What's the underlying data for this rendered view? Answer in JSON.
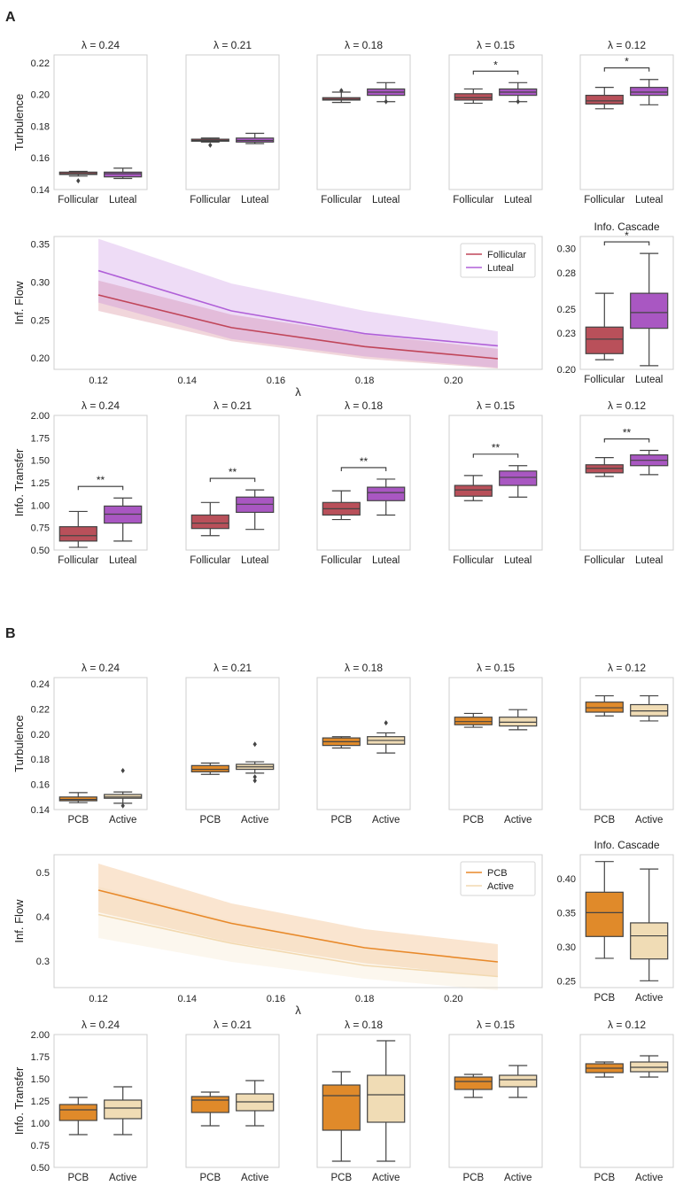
{
  "panels": [
    {
      "label": "A",
      "group1": "Follicular",
      "group2": "Luteal",
      "color1": "#b9505a",
      "color2": "#a957c2",
      "line1": "#c0465a",
      "line2": "#b060d8",
      "legend": [
        "Follicular",
        "Luteal"
      ],
      "series_names": [
        "Follicular",
        "Luteal"
      ]
    },
    {
      "label": "B",
      "group1": "PCB",
      "group2": "Active",
      "color1": "#e08a2a",
      "color2": "#f0dcb5",
      "line1": "#e8892a",
      "line2": "#f2d9b0",
      "legend": [
        "PCB",
        "Active"
      ],
      "series_names": [
        "PCB",
        "Active"
      ]
    }
  ],
  "lambda_titles": [
    "λ = 0.24",
    "λ = 0.21",
    "λ = 0.18",
    "λ = 0.15",
    "λ = 0.12"
  ],
  "labels": {
    "turbulence": "Turbulence",
    "inf_flow": "Inf. Flow",
    "info_transfer": "Info. Transfer",
    "info_cascade": "Info. Cascade",
    "lambda": "λ"
  },
  "chart_data": [
    {
      "type": "box",
      "panel": "A",
      "row": "Turbulence",
      "ylabel": "Turbulence",
      "ylim": [
        0.14,
        0.225
      ],
      "yticks": [
        "0.14",
        "0.16",
        "0.18",
        "0.20",
        "0.22"
      ],
      "subplots": [
        {
          "title": "λ = 0.24",
          "categories": [
            "Follicular",
            "Luteal"
          ],
          "boxes": [
            {
              "low": 0.1485,
              "q1": 0.1495,
              "median": 0.15,
              "q3": 0.151,
              "high": 0.1515,
              "outliers": [
                0.1455
              ]
            },
            {
              "low": 0.147,
              "q1": 0.148,
              "median": 0.15,
              "q3": 0.151,
              "high": 0.1535,
              "outliers": []
            }
          ],
          "sig": ""
        },
        {
          "title": "λ = 0.21",
          "categories": [
            "Follicular",
            "Luteal"
          ],
          "boxes": [
            {
              "low": 0.17,
              "q1": 0.1705,
              "median": 0.171,
              "q3": 0.1718,
              "high": 0.1725,
              "outliers": [
                0.168
              ]
            },
            {
              "low": 0.169,
              "q1": 0.17,
              "median": 0.171,
              "q3": 0.1725,
              "high": 0.1755,
              "outliers": []
            }
          ],
          "sig": ""
        },
        {
          "title": "λ = 0.18",
          "categories": [
            "Follicular",
            "Luteal"
          ],
          "boxes": [
            {
              "low": 0.195,
              "q1": 0.1965,
              "median": 0.197,
              "q3": 0.198,
              "high": 0.2015,
              "outliers": [
                0.2025
              ]
            },
            {
              "low": 0.1955,
              "q1": 0.1995,
              "median": 0.2015,
              "q3": 0.2035,
              "high": 0.2075,
              "outliers": [
                0.1955
              ]
            }
          ],
          "sig": ""
        },
        {
          "title": "λ = 0.15",
          "categories": [
            "Follicular",
            "Luteal"
          ],
          "boxes": [
            {
              "low": 0.1945,
              "q1": 0.1965,
              "median": 0.198,
              "q3": 0.2005,
              "high": 0.2035,
              "outliers": []
            },
            {
              "low": 0.1955,
              "q1": 0.1995,
              "median": 0.2015,
              "q3": 0.2035,
              "high": 0.2075,
              "outliers": [
                0.1955
              ]
            }
          ],
          "sig": "*"
        },
        {
          "title": "λ = 0.12",
          "categories": [
            "Follicular",
            "Luteal"
          ],
          "boxes": [
            {
              "low": 0.191,
              "q1": 0.194,
              "median": 0.196,
              "q3": 0.1995,
              "high": 0.2045,
              "outliers": []
            },
            {
              "low": 0.1935,
              "q1": 0.1995,
              "median": 0.2015,
              "q3": 0.2045,
              "high": 0.2095,
              "outliers": []
            }
          ],
          "sig": "*"
        }
      ]
    },
    {
      "type": "line",
      "panel": "A",
      "ylabel": "Inf. Flow",
      "xlabel": "λ",
      "xlim": [
        0.11,
        0.22
      ],
      "ylim": [
        0.185,
        0.36
      ],
      "xticks": [
        "0.12",
        "0.14",
        "0.16",
        "0.18",
        "0.20"
      ],
      "yticks": [
        "0.20",
        "0.25",
        "0.30",
        "0.35"
      ],
      "x": [
        0.12,
        0.15,
        0.18,
        0.21
      ],
      "series": [
        {
          "name": "Follicular",
          "mean": [
            0.283,
            0.24,
            0.215,
            0.199
          ],
          "lower": [
            0.262,
            0.222,
            0.199,
            0.186
          ],
          "upper": [
            0.302,
            0.257,
            0.231,
            0.212
          ]
        },
        {
          "name": "Luteal",
          "mean": [
            0.315,
            0.262,
            0.232,
            0.216
          ],
          "lower": [
            0.273,
            0.225,
            0.202,
            0.187
          ],
          "upper": [
            0.357,
            0.298,
            0.262,
            0.235
          ]
        }
      ],
      "legend_position": "top-right"
    },
    {
      "type": "box",
      "panel": "A",
      "row": "Info. Cascade",
      "title": "Info. Cascade",
      "ylim": [
        0.2,
        0.31
      ],
      "yticks": [
        "0.20",
        "0.23",
        "0.25",
        "0.28",
        "0.30"
      ],
      "categories": [
        "Follicular",
        "Luteal"
      ],
      "boxes": [
        {
          "low": 0.208,
          "q1": 0.213,
          "median": 0.225,
          "q3": 0.235,
          "high": 0.263,
          "outliers": []
        },
        {
          "low": 0.203,
          "q1": 0.234,
          "median": 0.247,
          "q3": 0.263,
          "high": 0.296,
          "outliers": []
        }
      ],
      "sig": "*"
    },
    {
      "type": "box",
      "panel": "A",
      "row": "Info. Transfer",
      "ylabel": "Info. Transfer",
      "ylim": [
        0.5,
        2.0
      ],
      "yticks": [
        "0.50",
        "0.75",
        "1.00",
        "1.25",
        "1.50",
        "1.75",
        "2.00"
      ],
      "subplots": [
        {
          "title": "λ = 0.24",
          "categories": [
            "Follicular",
            "Luteal"
          ],
          "boxes": [
            {
              "low": 0.53,
              "q1": 0.6,
              "median": 0.66,
              "q3": 0.76,
              "high": 0.93,
              "outliers": []
            },
            {
              "low": 0.6,
              "q1": 0.8,
              "median": 0.9,
              "q3": 0.99,
              "high": 1.08,
              "outliers": []
            }
          ],
          "sig": "**"
        },
        {
          "title": "λ = 0.21",
          "categories": [
            "Follicular",
            "Luteal"
          ],
          "boxes": [
            {
              "low": 0.66,
              "q1": 0.74,
              "median": 0.8,
              "q3": 0.89,
              "high": 1.03,
              "outliers": []
            },
            {
              "low": 0.73,
              "q1": 0.92,
              "median": 1.01,
              "q3": 1.09,
              "high": 1.17,
              "outliers": []
            }
          ],
          "sig": "**"
        },
        {
          "title": "λ = 0.18",
          "categories": [
            "Follicular",
            "Luteal"
          ],
          "boxes": [
            {
              "low": 0.84,
              "q1": 0.89,
              "median": 0.96,
              "q3": 1.03,
              "high": 1.16,
              "outliers": []
            },
            {
              "low": 0.89,
              "q1": 1.05,
              "median": 1.14,
              "q3": 1.2,
              "high": 1.29,
              "outliers": []
            }
          ],
          "sig": "**"
        },
        {
          "title": "λ = 0.15",
          "categories": [
            "Follicular",
            "Luteal"
          ],
          "boxes": [
            {
              "low": 1.05,
              "q1": 1.1,
              "median": 1.17,
              "q3": 1.22,
              "high": 1.33,
              "outliers": []
            },
            {
              "low": 1.09,
              "q1": 1.22,
              "median": 1.31,
              "q3": 1.38,
              "high": 1.44,
              "outliers": []
            }
          ],
          "sig": "**"
        },
        {
          "title": "λ = 0.12",
          "categories": [
            "Follicular",
            "Luteal"
          ],
          "boxes": [
            {
              "low": 1.32,
              "q1": 1.36,
              "median": 1.41,
              "q3": 1.45,
              "high": 1.53,
              "outliers": []
            },
            {
              "low": 1.34,
              "q1": 1.44,
              "median": 1.5,
              "q3": 1.56,
              "high": 1.61,
              "outliers": []
            }
          ],
          "sig": "**"
        }
      ]
    },
    {
      "type": "box",
      "panel": "B",
      "row": "Turbulence",
      "ylabel": "Turbulence",
      "ylim": [
        0.14,
        0.245
      ],
      "yticks": [
        "0.14",
        "0.16",
        "0.18",
        "0.20",
        "0.22",
        "0.24"
      ],
      "subplots": [
        {
          "title": "λ = 0.24",
          "categories": [
            "PCB",
            "Active"
          ],
          "boxes": [
            {
              "low": 0.1455,
              "q1": 0.147,
              "median": 0.148,
              "q3": 0.15,
              "high": 0.1535,
              "outliers": []
            },
            {
              "low": 0.145,
              "q1": 0.149,
              "median": 0.15,
              "q3": 0.152,
              "high": 0.154,
              "outliers": [
                0.171,
                0.143
              ]
            }
          ],
          "sig": ""
        },
        {
          "title": "λ = 0.21",
          "categories": [
            "PCB",
            "Active"
          ],
          "boxes": [
            {
              "low": 0.168,
              "q1": 0.17,
              "median": 0.172,
              "q3": 0.175,
              "high": 0.177,
              "outliers": []
            },
            {
              "low": 0.169,
              "q1": 0.172,
              "median": 0.174,
              "q3": 0.176,
              "high": 0.178,
              "outliers": [
                0.192,
                0.166,
                0.163
              ]
            }
          ],
          "sig": ""
        },
        {
          "title": "λ = 0.18",
          "categories": [
            "PCB",
            "Active"
          ],
          "boxes": [
            {
              "low": 0.189,
              "q1": 0.191,
              "median": 0.194,
              "q3": 0.197,
              "high": 0.198,
              "outliers": []
            },
            {
              "low": 0.185,
              "q1": 0.192,
              "median": 0.195,
              "q3": 0.198,
              "high": 0.201,
              "outliers": [
                0.209
              ]
            }
          ],
          "sig": ""
        },
        {
          "title": "λ = 0.15",
          "categories": [
            "PCB",
            "Active"
          ],
          "boxes": [
            {
              "low": 0.2055,
              "q1": 0.2075,
              "median": 0.21,
              "q3": 0.2135,
              "high": 0.2165,
              "outliers": []
            },
            {
              "low": 0.2035,
              "q1": 0.2065,
              "median": 0.2095,
              "q3": 0.2135,
              "high": 0.2195,
              "outliers": []
            }
          ],
          "sig": ""
        },
        {
          "title": "λ = 0.12",
          "categories": [
            "PCB",
            "Active"
          ],
          "boxes": [
            {
              "low": 0.2145,
              "q1": 0.2175,
              "median": 0.221,
              "q3": 0.2255,
              "high": 0.2305,
              "outliers": []
            },
            {
              "low": 0.2105,
              "q1": 0.2145,
              "median": 0.2185,
              "q3": 0.2235,
              "high": 0.2305,
              "outliers": []
            }
          ],
          "sig": ""
        }
      ]
    },
    {
      "type": "line",
      "panel": "B",
      "ylabel": "Inf. Flow",
      "xlabel": "λ",
      "xlim": [
        0.11,
        0.22
      ],
      "ylim": [
        0.24,
        0.54
      ],
      "xticks": [
        "0.12",
        "0.14",
        "0.16",
        "0.18",
        "0.20"
      ],
      "yticks": [
        "0.3",
        "0.4",
        "0.5"
      ],
      "x": [
        0.12,
        0.15,
        0.18,
        0.21
      ],
      "series": [
        {
          "name": "PCB",
          "mean": [
            0.46,
            0.385,
            0.33,
            0.298
          ],
          "lower": [
            0.41,
            0.342,
            0.295,
            0.264
          ],
          "upper": [
            0.52,
            0.43,
            0.372,
            0.338
          ]
        },
        {
          "name": "Active",
          "mean": [
            0.405,
            0.34,
            0.29,
            0.265
          ],
          "lower": [
            0.352,
            0.298,
            0.26,
            0.234
          ],
          "upper": [
            0.468,
            0.39,
            0.33,
            0.3
          ]
        }
      ],
      "legend_position": "top-right"
    },
    {
      "type": "box",
      "panel": "B",
      "row": "Info. Cascade",
      "title": "Info. Cascade",
      "ylim": [
        0.24,
        0.435
      ],
      "yticks": [
        "0.25",
        "0.30",
        "0.35",
        "0.40"
      ],
      "categories": [
        "PCB",
        "Active"
      ],
      "boxes": [
        {
          "low": 0.283,
          "q1": 0.315,
          "median": 0.35,
          "q3": 0.38,
          "high": 0.425,
          "outliers": []
        },
        {
          "low": 0.25,
          "q1": 0.282,
          "median": 0.316,
          "q3": 0.335,
          "high": 0.414,
          "outliers": []
        }
      ],
      "sig": ""
    },
    {
      "type": "box",
      "panel": "B",
      "row": "Info. Transfer",
      "ylabel": "Info. Transfer",
      "ylim": [
        0.5,
        2.0
      ],
      "yticks": [
        "0.50",
        "0.75",
        "1.00",
        "1.25",
        "1.50",
        "1.75",
        "2.00"
      ],
      "subplots": [
        {
          "title": "λ = 0.24",
          "categories": [
            "PCB",
            "Active"
          ],
          "boxes": [
            {
              "low": 0.87,
              "q1": 1.03,
              "median": 1.15,
              "q3": 1.21,
              "high": 1.29,
              "outliers": []
            },
            {
              "low": 0.87,
              "q1": 1.05,
              "median": 1.17,
              "q3": 1.26,
              "high": 1.41,
              "outliers": []
            }
          ],
          "sig": ""
        },
        {
          "title": "λ = 0.21",
          "categories": [
            "PCB",
            "Active"
          ],
          "boxes": [
            {
              "low": 0.97,
              "q1": 1.12,
              "median": 1.26,
              "q3": 1.3,
              "high": 1.35,
              "outliers": []
            },
            {
              "low": 0.97,
              "q1": 1.14,
              "median": 1.24,
              "q3": 1.33,
              "high": 1.48,
              "outliers": []
            }
          ],
          "sig": ""
        },
        {
          "title": "λ = 0.18",
          "categories": [
            "PCB",
            "Active"
          ],
          "boxes": [
            {
              "low": 0.57,
              "q1": 0.92,
              "median": 1.31,
              "q3": 1.43,
              "high": 1.58,
              "outliers": []
            },
            {
              "low": 0.57,
              "q1": 1.01,
              "median": 1.32,
              "q3": 1.54,
              "high": 1.93,
              "outliers": []
            }
          ],
          "sig": ""
        },
        {
          "title": "λ = 0.15",
          "categories": [
            "PCB",
            "Active"
          ],
          "boxes": [
            {
              "low": 1.29,
              "q1": 1.38,
              "median": 1.47,
              "q3": 1.52,
              "high": 1.55,
              "outliers": []
            },
            {
              "low": 1.29,
              "q1": 1.41,
              "median": 1.49,
              "q3": 1.54,
              "high": 1.65,
              "outliers": []
            }
          ],
          "sig": ""
        },
        {
          "title": "λ = 0.12",
          "categories": [
            "PCB",
            "Active"
          ],
          "boxes": [
            {
              "low": 1.52,
              "q1": 1.57,
              "median": 1.62,
              "q3": 1.67,
              "high": 1.69,
              "outliers": []
            },
            {
              "low": 1.52,
              "q1": 1.58,
              "median": 1.63,
              "q3": 1.69,
              "high": 1.76,
              "outliers": []
            }
          ],
          "sig": ""
        }
      ]
    }
  ]
}
